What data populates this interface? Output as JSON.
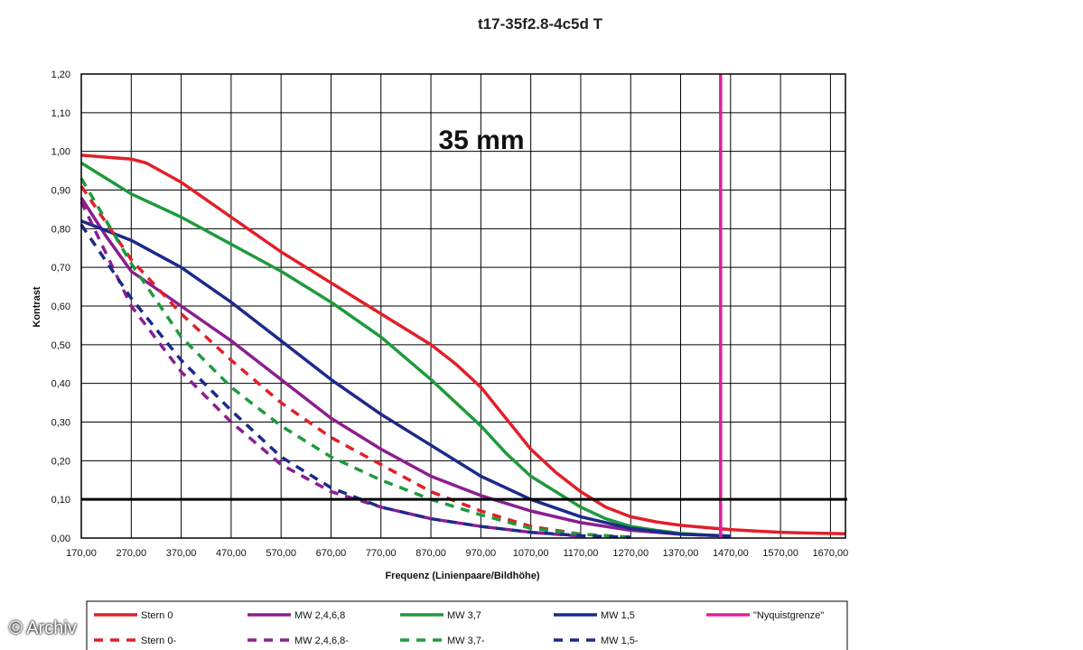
{
  "watermark": "© Archiv",
  "chart_data": {
    "type": "line",
    "title": "t17-35f2.8-4c5d T",
    "annotation": "35 mm",
    "xlabel": "Frequenz (Linienpaare/Bildhöhe)",
    "ylabel": "Kontrast",
    "xlim": [
      170,
      1700
    ],
    "ylim": [
      0,
      1.2
    ],
    "x_ticks": [
      "170,00",
      "270,00",
      "370,00",
      "470,00",
      "570,00",
      "670,00",
      "770,00",
      "870,00",
      "970,00",
      "1070,00",
      "1170,00",
      "1270,00",
      "1370,00",
      "1470,00",
      "1570,00",
      "1670,00"
    ],
    "x_tick_values": [
      170,
      270,
      370,
      470,
      570,
      670,
      770,
      870,
      970,
      1070,
      1170,
      1270,
      1370,
      1470,
      1570,
      1670
    ],
    "y_ticks": [
      "0,00",
      "0,10",
      "0,20",
      "0,30",
      "0,40",
      "0,50",
      "0,60",
      "0,70",
      "0,80",
      "0,90",
      "1,00",
      "1,10",
      "1,20"
    ],
    "y_tick_values": [
      0,
      0.1,
      0.2,
      0.3,
      0.4,
      0.5,
      0.6,
      0.7,
      0.8,
      0.9,
      1.0,
      1.1,
      1.2
    ],
    "grid": true,
    "legend_position": "bottom",
    "reference_lines": [
      {
        "orientation": "horizontal",
        "value": 0.1,
        "color": "#000000"
      }
    ],
    "series": [
      {
        "name": "Stern 0",
        "color": "#e0202a",
        "dash": false,
        "x": [
          170,
          220,
          270,
          300,
          370,
          470,
          570,
          670,
          770,
          870,
          920,
          970,
          1020,
          1070,
          1120,
          1170,
          1220,
          1270,
          1320,
          1370,
          1420,
          1470,
          1520,
          1570,
          1620,
          1700
        ],
        "y": [
          0.99,
          0.985,
          0.98,
          0.97,
          0.92,
          0.83,
          0.74,
          0.66,
          0.58,
          0.5,
          0.45,
          0.39,
          0.31,
          0.23,
          0.17,
          0.12,
          0.08,
          0.055,
          0.042,
          0.033,
          0.027,
          0.022,
          0.018,
          0.015,
          0.013,
          0.011
        ]
      },
      {
        "name": "MW 2,4,6,8",
        "color": "#8b1e8f",
        "dash": false,
        "x": [
          170,
          220,
          270,
          370,
          470,
          570,
          670,
          770,
          870,
          970,
          1070,
          1170,
          1270,
          1370,
          1470
        ],
        "y": [
          0.88,
          0.78,
          0.69,
          0.6,
          0.51,
          0.41,
          0.31,
          0.23,
          0.16,
          0.11,
          0.07,
          0.04,
          0.02,
          0.01,
          0.005
        ]
      },
      {
        "name": "MW 3,7",
        "color": "#1f9a3d",
        "dash": false,
        "x": [
          170,
          270,
          370,
          470,
          570,
          670,
          770,
          870,
          970,
          1020,
          1070,
          1120,
          1170,
          1220,
          1270,
          1320,
          1370,
          1420,
          1470
        ],
        "y": [
          0.97,
          0.89,
          0.83,
          0.76,
          0.69,
          0.61,
          0.52,
          0.41,
          0.29,
          0.22,
          0.16,
          0.12,
          0.08,
          0.05,
          0.03,
          0.02,
          0.012,
          0.008,
          0.005
        ]
      },
      {
        "name": "MW 1,5",
        "color": "#1c2a8a",
        "dash": false,
        "x": [
          170,
          270,
          370,
          470,
          570,
          670,
          770,
          870,
          970,
          1070,
          1170,
          1270,
          1370,
          1470
        ],
        "y": [
          0.82,
          0.77,
          0.7,
          0.61,
          0.51,
          0.41,
          0.32,
          0.24,
          0.16,
          0.1,
          0.055,
          0.025,
          0.01,
          0.005
        ]
      },
      {
        "name": "\"Nyquistgrenze\"",
        "color": "#e0209c",
        "dash": false,
        "x": [
          1450,
          1450
        ],
        "y": [
          0,
          1.2
        ]
      },
      {
        "name": "Stern 0-",
        "color": "#e0202a",
        "dash": true,
        "x": [
          170,
          270,
          370,
          470,
          570,
          670,
          770,
          870,
          970,
          1070,
          1170,
          1270
        ],
        "y": [
          0.91,
          0.72,
          0.58,
          0.46,
          0.35,
          0.26,
          0.19,
          0.12,
          0.07,
          0.03,
          0.01,
          0.002
        ]
      },
      {
        "name": "MW 2,4,6,8-",
        "color": "#8b1e8f",
        "dash": true,
        "x": [
          170,
          270,
          370,
          470,
          570,
          670,
          770,
          870,
          970,
          1070,
          1170
        ],
        "y": [
          0.87,
          0.6,
          0.43,
          0.3,
          0.19,
          0.12,
          0.08,
          0.05,
          0.03,
          0.015,
          0.005
        ]
      },
      {
        "name": "MW 3,7-",
        "color": "#1f9a3d",
        "dash": true,
        "x": [
          170,
          270,
          370,
          470,
          570,
          670,
          770,
          870,
          970,
          1070,
          1170,
          1270
        ],
        "y": [
          0.93,
          0.71,
          0.52,
          0.39,
          0.29,
          0.21,
          0.15,
          0.1,
          0.06,
          0.025,
          0.01,
          0.002
        ]
      },
      {
        "name": "MW 1,5-",
        "color": "#1c2a8a",
        "dash": true,
        "x": [
          170,
          270,
          370,
          470,
          570,
          670,
          770,
          870,
          970,
          1070,
          1170,
          1270
        ],
        "y": [
          0.81,
          0.62,
          0.46,
          0.33,
          0.21,
          0.13,
          0.08,
          0.05,
          0.03,
          0.015,
          0.006,
          0.002
        ]
      }
    ]
  }
}
